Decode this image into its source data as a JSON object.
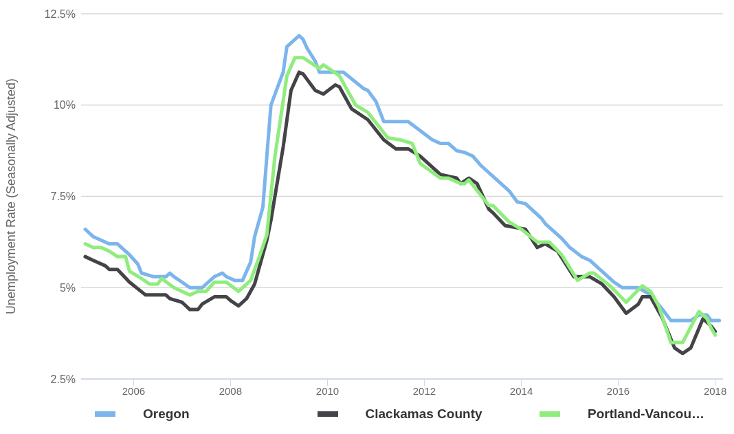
{
  "chart_data": {
    "type": "line",
    "ylabel": "Unemployment Rate (Seasonally Adjusted)",
    "xlim": [
      "2004-12",
      "2018-03"
    ],
    "xticks": [
      "2006",
      "2008",
      "2010",
      "2012",
      "2014",
      "2016",
      "2018"
    ],
    "ylim": [
      2.5,
      12.5
    ],
    "yticks": [
      {
        "value": 2.5,
        "label": "2.5%"
      },
      {
        "value": 5,
        "label": "5%"
      },
      {
        "value": 7.5,
        "label": "7.5%"
      },
      {
        "value": 10,
        "label": "10%"
      },
      {
        "value": 12.5,
        "label": "12.5%"
      }
    ],
    "grid": "y",
    "legend": "bottom",
    "marker": "none",
    "line_style": "solid",
    "series": [
      {
        "name": "Oregon",
        "color": "#7cb5ec",
        "x": [
          "2005-01",
          "2005-03",
          "2005-05",
          "2005-07",
          "2005-09",
          "2005-10",
          "2005-12",
          "2006-02",
          "2006-03",
          "2006-06",
          "2006-09",
          "2006-10",
          "2006-11",
          "2007-01",
          "2007-03",
          "2007-06",
          "2007-09",
          "2007-11",
          "2007-12",
          "2008-02",
          "2008-04",
          "2008-06",
          "2008-07",
          "2008-09",
          "2008-10",
          "2008-11",
          "2009-02",
          "2009-03",
          "2009-06",
          "2009-07",
          "2009-08",
          "2009-10",
          "2009-11",
          "2010-05",
          "2010-10",
          "2010-11",
          "2011-01",
          "2011-03",
          "2011-09",
          "2012-03",
          "2012-05",
          "2012-07",
          "2012-09",
          "2012-11",
          "2013-01",
          "2013-03",
          "2013-05",
          "2013-10",
          "2013-12",
          "2014-02",
          "2014-06",
          "2014-07",
          "2014-11",
          "2015-01",
          "2015-04",
          "2015-06",
          "2015-12",
          "2016-02",
          "2016-06",
          "2016-09",
          "2016-12",
          "2017-02",
          "2017-07",
          "2017-09",
          "2017-11",
          "2017-12",
          "2018-02"
        ],
        "values": [
          6.6,
          6.4,
          6.3,
          6.2,
          6.2,
          6.1,
          5.9,
          5.65,
          5.4,
          5.3,
          5.3,
          5.4,
          5.3,
          5.15,
          5.0,
          5.0,
          5.3,
          5.4,
          5.3,
          5.2,
          5.2,
          5.7,
          6.4,
          7.2,
          8.6,
          10.0,
          10.9,
          11.6,
          11.9,
          11.8,
          11.55,
          11.2,
          10.9,
          10.9,
          10.45,
          10.4,
          10.1,
          9.55,
          9.55,
          9.05,
          8.95,
          8.95,
          8.75,
          8.7,
          8.6,
          8.35,
          8.15,
          7.65,
          7.35,
          7.3,
          6.9,
          6.75,
          6.35,
          6.1,
          5.85,
          5.75,
          5.15,
          5.0,
          5.0,
          4.8,
          4.4,
          4.1,
          4.1,
          4.25,
          4.25,
          4.1,
          4.1
        ]
      },
      {
        "name": "Clackamas County",
        "color": "#434348",
        "x": [
          "2005-01",
          "2005-03",
          "2005-06",
          "2005-07",
          "2005-09",
          "2005-12",
          "2006-04",
          "2006-09",
          "2006-10",
          "2007-01",
          "2007-03",
          "2007-05",
          "2007-06",
          "2007-09",
          "2007-12",
          "2008-01",
          "2008-03",
          "2008-05",
          "2008-07",
          "2008-10",
          "2008-11",
          "2009-02",
          "2009-04",
          "2009-06",
          "2009-07",
          "2009-10",
          "2009-12",
          "2010-03",
          "2010-04",
          "2010-07",
          "2010-11",
          "2011-03",
          "2011-06",
          "2011-09",
          "2011-12",
          "2012-05",
          "2012-09",
          "2012-10",
          "2012-12",
          "2013-02",
          "2013-05",
          "2013-06",
          "2013-09",
          "2014-02",
          "2014-05",
          "2014-07",
          "2014-10",
          "2015-02",
          "2015-06",
          "2015-09",
          "2015-12",
          "2016-03",
          "2016-06",
          "2016-07",
          "2016-09",
          "2016-12",
          "2017-03",
          "2017-05",
          "2017-07",
          "2017-10",
          "2017-12",
          "2018-01"
        ],
        "values": [
          5.85,
          5.75,
          5.6,
          5.5,
          5.5,
          5.15,
          4.8,
          4.8,
          4.7,
          4.6,
          4.4,
          4.4,
          4.55,
          4.75,
          4.75,
          4.65,
          4.5,
          4.7,
          5.1,
          6.3,
          6.85,
          8.85,
          10.4,
          10.9,
          10.85,
          10.4,
          10.3,
          10.55,
          10.5,
          9.9,
          9.6,
          9.05,
          8.8,
          8.8,
          8.6,
          8.1,
          8.0,
          7.85,
          8.0,
          7.85,
          7.15,
          7.05,
          6.7,
          6.6,
          6.1,
          6.2,
          6.0,
          5.3,
          5.3,
          5.1,
          4.75,
          4.3,
          4.55,
          4.75,
          4.75,
          4.15,
          3.35,
          3.2,
          3.35,
          4.15,
          3.95,
          3.8
        ]
      },
      {
        "name": "Portland-Vancou…",
        "color": "#90ed7d",
        "x": [
          "2005-01",
          "2005-03",
          "2005-05",
          "2005-07",
          "2005-09",
          "2005-11",
          "2005-12",
          "2006-03",
          "2006-05",
          "2006-07",
          "2006-08",
          "2006-11",
          "2006-12",
          "2007-03",
          "2007-05",
          "2007-07",
          "2007-09",
          "2007-12",
          "2008-03",
          "2008-06",
          "2008-08",
          "2008-10",
          "2008-12",
          "2009-03",
          "2009-05",
          "2009-07",
          "2009-11",
          "2009-12",
          "2010-02",
          "2010-04",
          "2010-08",
          "2010-11",
          "2011-04",
          "2011-07",
          "2011-10",
          "2011-12",
          "2012-05",
          "2012-07",
          "2012-10",
          "2012-11",
          "2012-12",
          "2013-05",
          "2013-06",
          "2013-10",
          "2014-01",
          "2014-05",
          "2014-08",
          "2014-11",
          "2015-03",
          "2015-06",
          "2015-07",
          "2015-11",
          "2016-03",
          "2016-07",
          "2016-09",
          "2016-11",
          "2017-02",
          "2017-05",
          "2017-09",
          "2017-11",
          "2017-12",
          "2018-01"
        ],
        "values": [
          6.2,
          6.1,
          6.1,
          6.0,
          5.85,
          5.85,
          5.45,
          5.25,
          5.1,
          5.1,
          5.25,
          5.0,
          4.95,
          4.8,
          4.9,
          4.9,
          5.15,
          5.15,
          4.9,
          5.2,
          5.8,
          6.45,
          8.6,
          10.8,
          11.3,
          11.3,
          11.0,
          11.1,
          10.95,
          10.8,
          10.0,
          9.8,
          9.1,
          9.05,
          8.95,
          8.4,
          8.0,
          8.0,
          7.85,
          7.85,
          7.95,
          7.25,
          7.25,
          6.8,
          6.6,
          6.25,
          6.25,
          5.9,
          5.2,
          5.4,
          5.4,
          5.05,
          4.6,
          5.05,
          4.9,
          4.5,
          3.5,
          3.5,
          4.35,
          4.15,
          3.9,
          3.7
        ]
      }
    ]
  }
}
